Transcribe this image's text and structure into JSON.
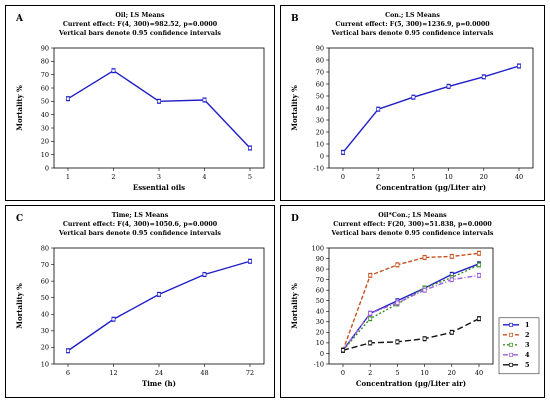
{
  "panels": [
    {
      "label": "A",
      "header": [
        "Oil; LS Means",
        "Current effect: F(4, 300)=982.52, p=0.0000",
        "Vertical bars denote 0.95 confidence intervals"
      ]
    },
    {
      "label": "B",
      "header": [
        "Con.; LS Means",
        "Current effect: F(5, 300)=1236.9, p=0.0000",
        "Vertical bars denote 0.95 confidence intervals"
      ]
    },
    {
      "label": "C",
      "header": [
        "Time; LS Means",
        "Current effect: F(4, 300)=1050.6, p=0.0000",
        "Vertical bars denote 0.95 confidence intervals"
      ]
    },
    {
      "label": "D",
      "header": [
        "Oil*Con.; LS Means",
        "Current effect: F(20, 300)=51.838, p=0.0000",
        "Vertical bars denote 0.95 confidence intervals"
      ]
    }
  ],
  "chart_data": [
    {
      "type": "line",
      "categories": [
        "1",
        "2",
        "3",
        "4",
        "5"
      ],
      "values": [
        52,
        73,
        50,
        51,
        15
      ],
      "xlabel": "Essential oils",
      "ylabel": "Mortality %",
      "ylim": [
        0,
        90
      ],
      "yticks": [
        0,
        10,
        20,
        30,
        40,
        50,
        60,
        70,
        80,
        90
      ],
      "color": "#1f1fc8"
    },
    {
      "type": "line",
      "categories": [
        "0",
        "2",
        "5",
        "10",
        "20",
        "40"
      ],
      "values": [
        3,
        39,
        49,
        58,
        66,
        75
      ],
      "xlabel": "Concentration (µg/Liter air)",
      "ylabel": "Mortality %",
      "ylim": [
        -10,
        90
      ],
      "yticks": [
        -10,
        0,
        10,
        20,
        30,
        40,
        50,
        60,
        70,
        80,
        90
      ],
      "color": "#1f1fc8"
    },
    {
      "type": "line",
      "categories": [
        "6",
        "12",
        "24",
        "48",
        "72"
      ],
      "values": [
        18,
        37,
        52,
        64,
        72
      ],
      "xlabel": "Time (h)",
      "ylabel": "Mortality %",
      "ylim": [
        10,
        80
      ],
      "yticks": [
        10,
        20,
        30,
        40,
        50,
        60,
        70,
        80
      ],
      "color": "#1f1fc8"
    },
    {
      "type": "line",
      "categories": [
        "0",
        "2",
        "5",
        "10",
        "20",
        "40"
      ],
      "xlabel": "Concentration (µg/Liter air)",
      "ylabel": "Mortality %",
      "ylim": [
        -10,
        100
      ],
      "yticks": [
        -10,
        0,
        10,
        20,
        30,
        40,
        50,
        60,
        70,
        80,
        90,
        100
      ],
      "legend": "right",
      "series": [
        {
          "name": "1",
          "values": [
            3,
            38,
            50,
            62,
            75,
            85
          ],
          "color": "#1f1fc8"
        },
        {
          "name": "2",
          "values": [
            3,
            74,
            84,
            91,
            92,
            95
          ],
          "color": "#c8501e"
        },
        {
          "name": "3",
          "values": [
            3,
            33,
            47,
            62,
            72,
            84
          ],
          "color": "#3c8c2a"
        },
        {
          "name": "4",
          "values": [
            3,
            38,
            48,
            60,
            70,
            74
          ],
          "color": "#9a5fd6"
        },
        {
          "name": "5",
          "values": [
            3,
            10,
            11,
            14,
            20,
            33
          ],
          "color": "#111111"
        }
      ]
    }
  ]
}
